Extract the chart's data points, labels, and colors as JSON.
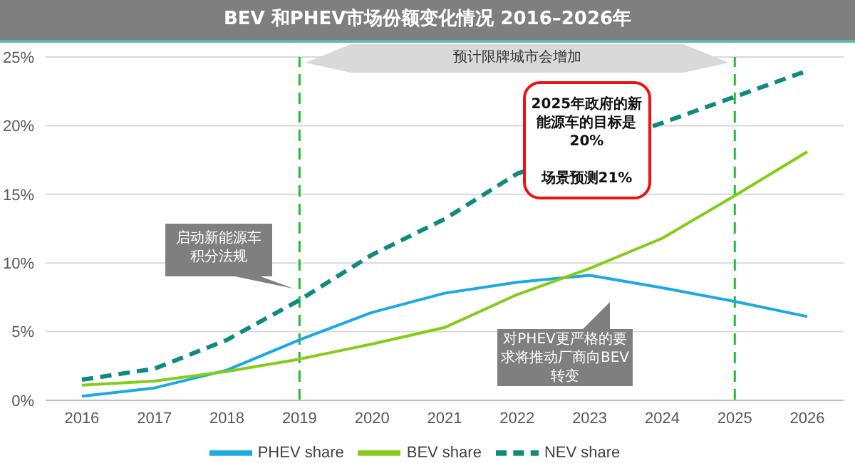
{
  "chart_data": {
    "type": "line",
    "title": "BEV 和PHEV市场份额变化情况 2016–2026年",
    "categories": [
      "2016",
      "2017",
      "2018",
      "2019",
      "2020",
      "2021",
      "2022",
      "2023",
      "2024",
      "2025",
      "2026"
    ],
    "series": [
      {
        "name": "PHEV share",
        "color": "#1ba9e1",
        "values": [
          0.3,
          0.9,
          2.2,
          4.4,
          6.4,
          7.8,
          8.6,
          9.1,
          8.2,
          7.2,
          6.1
        ]
      },
      {
        "name": "BEV share",
        "color": "#84cc16",
        "values": [
          1.1,
          1.4,
          2.1,
          3.0,
          4.1,
          5.3,
          7.7,
          9.6,
          11.8,
          14.9,
          18.1
        ]
      },
      {
        "name": "NEV share",
        "color": "#0f8a7e",
        "line_style": "dashed",
        "values": [
          1.5,
          2.3,
          4.4,
          7.3,
          10.6,
          13.2,
          16.5,
          null,
          20.2,
          22.1,
          24.0
        ]
      }
    ],
    "ylim": [
      0,
      25
    ],
    "yticks": [
      {
        "value": 0,
        "label": "0%"
      },
      {
        "value": 5,
        "label": "5%"
      },
      {
        "value": 10,
        "label": "10%"
      },
      {
        "value": 15,
        "label": "15%"
      },
      {
        "value": 20,
        "label": "20%"
      },
      {
        "value": 25,
        "label": "25%"
      }
    ],
    "ref_lines": [
      {
        "axis": "x",
        "value": "2019",
        "color": "#22bb33",
        "line_style": "dashed"
      },
      {
        "axis": "x",
        "value": "2025",
        "color": "#22bb33",
        "line_style": "dashed"
      }
    ],
    "annotations": [
      "预计限牌城市会增加",
      {
        "text": "启动新能源车积分法规",
        "x": "2019",
        "y": 7.3
      },
      "对PHEV更严格的要求将推动厂商向BEV转变",
      "2025年政府的新能源车的目标是20%\n\n场景预测21%"
    ],
    "grid": "y",
    "legend": "bottom",
    "marker": "none"
  }
}
